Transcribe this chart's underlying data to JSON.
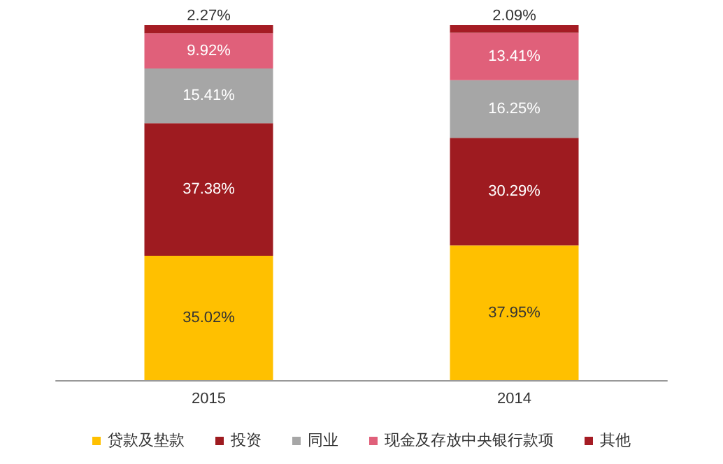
{
  "chart_data": {
    "type": "bar",
    "stacked": true,
    "categories": [
      "2015",
      "2014"
    ],
    "series": [
      {
        "name": "贷款及垫款",
        "color": "#ffc000",
        "values": [
          35.02,
          37.95
        ],
        "value_labels": [
          "35.02%",
          "37.95%"
        ]
      },
      {
        "name": "投资",
        "color": "#9e1b20",
        "values": [
          37.38,
          30.29
        ],
        "value_labels": [
          "37.38%",
          "30.29%"
        ]
      },
      {
        "name": "同业",
        "color": "#a6a6a6",
        "values": [
          15.41,
          16.25
        ],
        "value_labels": [
          "15.41%",
          "16.25%"
        ]
      },
      {
        "name": "现金及存放中央银行款项",
        "color": "#e0607a",
        "values": [
          9.92,
          13.41
        ],
        "value_labels": [
          "9.92%",
          "13.41%"
        ]
      },
      {
        "name": "其他",
        "color": "#a51c24",
        "values": [
          2.27,
          2.09
        ],
        "value_labels": [
          "2.27%",
          "2.09%"
        ]
      }
    ],
    "legend": "bottom"
  }
}
